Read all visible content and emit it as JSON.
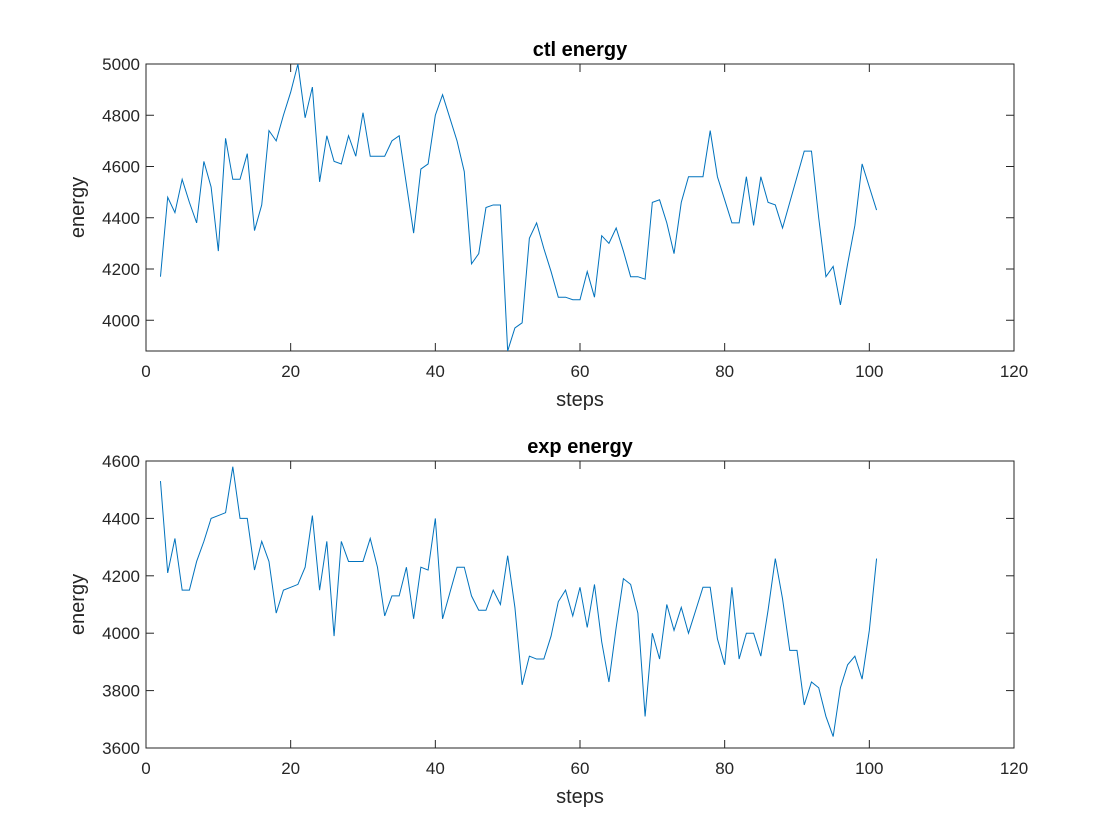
{
  "chart_data": [
    {
      "type": "line",
      "title": "ctl energy",
      "xlabel": "steps",
      "ylabel": "energy",
      "xlim": [
        0,
        120
      ],
      "ylim": [
        3880,
        5000
      ],
      "xticks": [
        0,
        20,
        40,
        60,
        80,
        100,
        120
      ],
      "yticks": [
        4000,
        4200,
        4400,
        4600,
        4800,
        5000
      ],
      "grid": false,
      "color": "#0072BD",
      "series": [
        {
          "x": [
            2,
            3,
            4,
            5,
            6,
            7,
            8,
            9,
            10,
            11,
            12,
            13,
            14,
            15,
            16,
            17,
            18,
            19,
            20,
            21,
            22,
            23,
            24,
            25,
            26,
            27,
            28,
            29,
            30,
            31,
            32,
            33,
            34,
            35,
            36,
            37,
            38,
            39,
            40,
            41,
            42,
            43,
            44,
            45,
            46,
            47,
            48,
            49,
            50,
            51,
            52,
            53,
            54,
            55,
            56,
            57,
            58,
            59,
            60,
            61,
            62,
            63,
            64,
            65,
            66,
            67,
            68,
            69,
            70,
            71,
            72,
            73,
            74,
            75,
            76,
            77,
            78,
            79,
            80,
            81,
            82,
            83,
            84,
            85,
            86,
            87,
            88,
            89,
            90,
            91,
            92,
            93,
            94,
            95,
            96,
            97,
            98,
            99,
            100,
            101
          ],
          "y": [
            4170,
            4480,
            4420,
            4550,
            4460,
            4380,
            4620,
            4520,
            4270,
            4710,
            4550,
            4550,
            4650,
            4350,
            4450,
            4740,
            4700,
            4800,
            4890,
            5000,
            4790,
            4910,
            4540,
            4720,
            4620,
            4610,
            4720,
            4640,
            4810,
            4640,
            4640,
            4640,
            4700,
            4720,
            4530,
            4340,
            4590,
            4610,
            4800,
            4880,
            4790,
            4700,
            4580,
            4220,
            4260,
            4440,
            4450,
            4450,
            3880,
            3970,
            3990,
            4320,
            4380,
            4280,
            4190,
            4090,
            4090,
            4080,
            4080,
            4190,
            4090,
            4330,
            4300,
            4360,
            4270,
            4170,
            4170,
            4160,
            4460,
            4470,
            4380,
            4260,
            4460,
            4560,
            4560,
            4560,
            4740,
            4560,
            4470,
            4380,
            4380,
            4560,
            4370,
            4560,
            4460,
            4450,
            4360,
            4460,
            4560,
            4660,
            4660,
            4400,
            4170,
            4210,
            4060,
            4220,
            4370,
            4610,
            4520,
            4430
          ]
        }
      ]
    },
    {
      "type": "line",
      "title": "exp energy",
      "xlabel": "steps",
      "ylabel": "energy",
      "xlim": [
        0,
        120
      ],
      "ylim": [
        3600,
        4600
      ],
      "xticks": [
        0,
        20,
        40,
        60,
        80,
        100,
        120
      ],
      "yticks": [
        3600,
        3800,
        4000,
        4200,
        4400,
        4600
      ],
      "grid": false,
      "color": "#0072BD",
      "series": [
        {
          "x": [
            2,
            3,
            4,
            5,
            6,
            7,
            8,
            9,
            10,
            11,
            12,
            13,
            14,
            15,
            16,
            17,
            18,
            19,
            20,
            21,
            22,
            23,
            24,
            25,
            26,
            27,
            28,
            29,
            30,
            31,
            32,
            33,
            34,
            35,
            36,
            37,
            38,
            39,
            40,
            41,
            42,
            43,
            44,
            45,
            46,
            47,
            48,
            49,
            50,
            51,
            52,
            53,
            54,
            55,
            56,
            57,
            58,
            59,
            60,
            61,
            62,
            63,
            64,
            65,
            66,
            67,
            68,
            69,
            70,
            71,
            72,
            73,
            74,
            75,
            76,
            77,
            78,
            79,
            80,
            81,
            82,
            83,
            84,
            85,
            86,
            87,
            88,
            89,
            90,
            91,
            92,
            93,
            94,
            95,
            96,
            97,
            98,
            99,
            100,
            101
          ],
          "y": [
            4530,
            4210,
            4330,
            4150,
            4150,
            4250,
            4320,
            4400,
            4410,
            4420,
            4580,
            4400,
            4400,
            4220,
            4320,
            4250,
            4070,
            4150,
            4160,
            4170,
            4230,
            4410,
            4150,
            4320,
            3990,
            4320,
            4250,
            4250,
            4250,
            4330,
            4230,
            4060,
            4130,
            4130,
            4230,
            4050,
            4230,
            4220,
            4400,
            4050,
            4140,
            4230,
            4230,
            4130,
            4080,
            4080,
            4150,
            4100,
            4270,
            4090,
            3820,
            3920,
            3910,
            3910,
            3990,
            4110,
            4150,
            4060,
            4160,
            4020,
            4170,
            3970,
            3830,
            4020,
            4190,
            4170,
            4070,
            3710,
            4000,
            3910,
            4100,
            4010,
            4090,
            4000,
            4080,
            4160,
            4160,
            3980,
            3890,
            4160,
            3910,
            4000,
            4000,
            3920,
            4080,
            4260,
            4120,
            3940,
            3940,
            3750,
            3830,
            3810,
            3710,
            3640,
            3810,
            3890,
            3920,
            3840,
            4010,
            4260
          ]
        }
      ]
    }
  ]
}
